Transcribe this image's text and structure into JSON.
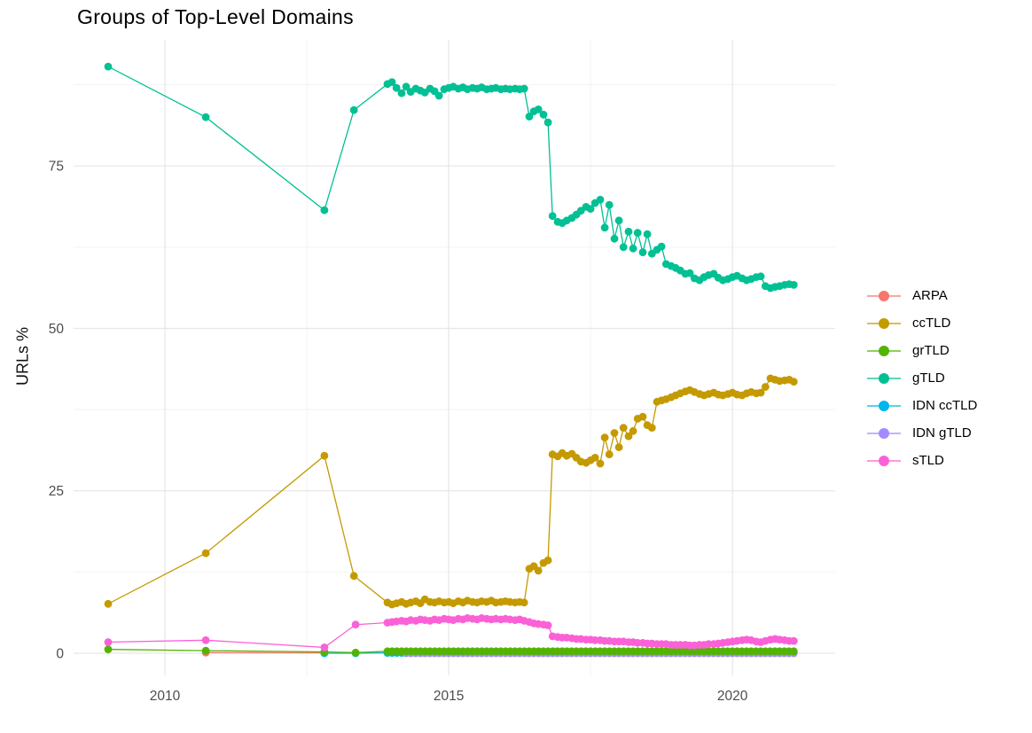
{
  "chart_data": {
    "type": "scatter-line",
    "title": "Groups of Top-Level Domains",
    "xlabel": "",
    "ylabel": "URLs %",
    "x_ticks": [
      {
        "value": 2010,
        "label": "2010"
      },
      {
        "value": 2015,
        "label": "2015"
      },
      {
        "value": 2020,
        "label": "2020"
      }
    ],
    "y_ticks": [
      {
        "value": 0,
        "label": "0"
      },
      {
        "value": 25,
        "label": "25"
      },
      {
        "value": 50,
        "label": "50"
      },
      {
        "value": 75,
        "label": "75"
      }
    ],
    "x_minor": [
      2012.5,
      2017.5
    ],
    "y_minor": [
      12.5,
      37.5,
      62.5,
      87.5
    ],
    "xlim": [
      2008.39,
      2021.81
    ],
    "ylim": [
      -3.41,
      94.4
    ],
    "grid": {
      "major_color": "#E6E6E6",
      "minor_color": "#F2F2F2",
      "background": "#FFFFFF"
    },
    "tick_label_color": "#4D4D4D",
    "legend_position": "right",
    "series": [
      {
        "name": "ARPA",
        "color": "#F8766D",
        "points": [
          [
            2010.72,
            0.1
          ],
          [
            2012.81,
            0.05
          ]
        ]
      },
      {
        "name": "ccTLD",
        "color": "#C49A00",
        "points": [
          [
            2009.0,
            7.6
          ],
          [
            2010.72,
            15.4
          ],
          [
            2012.81,
            30.4
          ],
          [
            2013.33,
            11.9
          ],
          [
            2013.92,
            7.8
          ],
          [
            2014.0,
            7.5
          ],
          [
            2014.08,
            7.7
          ],
          [
            2014.17,
            7.9
          ],
          [
            2014.25,
            7.6
          ],
          [
            2014.33,
            7.8
          ],
          [
            2014.42,
            8.0
          ],
          [
            2014.5,
            7.7
          ],
          [
            2014.58,
            8.3
          ],
          [
            2014.67,
            7.9
          ],
          [
            2014.75,
            7.8
          ],
          [
            2014.83,
            8.0
          ],
          [
            2014.92,
            7.8
          ],
          [
            2015.0,
            7.9
          ],
          [
            2015.08,
            7.7
          ],
          [
            2015.17,
            8.0
          ],
          [
            2015.25,
            7.8
          ],
          [
            2015.33,
            8.1
          ],
          [
            2015.42,
            7.9
          ],
          [
            2015.5,
            7.8
          ],
          [
            2015.58,
            8.0
          ],
          [
            2015.67,
            7.9
          ],
          [
            2015.75,
            8.1
          ],
          [
            2015.83,
            7.8
          ],
          [
            2015.92,
            7.9
          ],
          [
            2016.0,
            8.0
          ],
          [
            2016.08,
            7.9
          ],
          [
            2016.17,
            7.8
          ],
          [
            2016.25,
            7.9
          ],
          [
            2016.33,
            7.8
          ],
          [
            2016.42,
            13.0
          ],
          [
            2016.5,
            13.4
          ],
          [
            2016.58,
            12.7
          ],
          [
            2016.67,
            13.9
          ],
          [
            2016.75,
            14.3
          ],
          [
            2016.83,
            30.6
          ],
          [
            2016.92,
            30.3
          ],
          [
            2017.0,
            30.8
          ],
          [
            2017.08,
            30.4
          ],
          [
            2017.17,
            30.7
          ],
          [
            2017.25,
            30.1
          ],
          [
            2017.33,
            29.5
          ],
          [
            2017.42,
            29.3
          ],
          [
            2017.5,
            29.7
          ],
          [
            2017.58,
            30.1
          ],
          [
            2017.67,
            29.2
          ],
          [
            2017.75,
            33.2
          ],
          [
            2017.83,
            30.6
          ],
          [
            2017.92,
            33.9
          ],
          [
            2018.0,
            31.7
          ],
          [
            2018.08,
            34.7
          ],
          [
            2018.17,
            33.4
          ],
          [
            2018.25,
            34.2
          ],
          [
            2018.33,
            36.1
          ],
          [
            2018.42,
            36.4
          ],
          [
            2018.5,
            35.1
          ],
          [
            2018.58,
            34.7
          ],
          [
            2018.67,
            38.7
          ],
          [
            2018.75,
            38.9
          ],
          [
            2018.83,
            39.1
          ],
          [
            2018.92,
            39.4
          ],
          [
            2019.0,
            39.7
          ],
          [
            2019.08,
            40.0
          ],
          [
            2019.17,
            40.3
          ],
          [
            2019.25,
            40.5
          ],
          [
            2019.33,
            40.2
          ],
          [
            2019.42,
            39.9
          ],
          [
            2019.5,
            39.7
          ],
          [
            2019.58,
            39.9
          ],
          [
            2019.67,
            40.1
          ],
          [
            2019.75,
            39.8
          ],
          [
            2019.83,
            39.7
          ],
          [
            2019.92,
            39.9
          ],
          [
            2020.0,
            40.1
          ],
          [
            2020.08,
            39.8
          ],
          [
            2020.17,
            39.7
          ],
          [
            2020.25,
            40.0
          ],
          [
            2020.33,
            40.2
          ],
          [
            2020.42,
            40.0
          ],
          [
            2020.5,
            40.1
          ],
          [
            2020.58,
            41.0
          ],
          [
            2020.67,
            42.3
          ],
          [
            2020.75,
            42.1
          ],
          [
            2020.83,
            41.9
          ],
          [
            2020.92,
            42.0
          ],
          [
            2021.0,
            42.1
          ],
          [
            2021.08,
            41.8
          ]
        ]
      },
      {
        "name": "grTLD",
        "color": "#53B400",
        "points": [
          [
            2009.0,
            0.6
          ],
          [
            2010.72,
            0.4
          ],
          [
            2012.81,
            0.2
          ],
          [
            2013.36,
            0.1
          ]
        ],
        "points_flat": {
          "from": 2013.92,
          "to": 2021.08,
          "n": 87,
          "value": 0.3
        }
      },
      {
        "name": "gTLD",
        "color": "#00C094",
        "points": [
          [
            2009.0,
            90.3
          ],
          [
            2010.72,
            82.5
          ],
          [
            2012.81,
            68.2
          ],
          [
            2013.33,
            83.6
          ],
          [
            2013.92,
            87.6
          ],
          [
            2014.0,
            87.9
          ],
          [
            2014.08,
            87.0
          ],
          [
            2014.17,
            86.2
          ],
          [
            2014.25,
            87.2
          ],
          [
            2014.33,
            86.4
          ],
          [
            2014.42,
            86.9
          ],
          [
            2014.5,
            86.6
          ],
          [
            2014.58,
            86.3
          ],
          [
            2014.67,
            86.9
          ],
          [
            2014.75,
            86.5
          ],
          [
            2014.83,
            85.8
          ],
          [
            2014.92,
            86.8
          ],
          [
            2015.0,
            87.0
          ],
          [
            2015.08,
            87.2
          ],
          [
            2015.17,
            86.9
          ],
          [
            2015.25,
            87.1
          ],
          [
            2015.33,
            86.8
          ],
          [
            2015.42,
            87.0
          ],
          [
            2015.5,
            86.9
          ],
          [
            2015.58,
            87.1
          ],
          [
            2015.67,
            86.8
          ],
          [
            2015.75,
            86.9
          ],
          [
            2015.83,
            87.0
          ],
          [
            2015.92,
            86.8
          ],
          [
            2016.0,
            86.9
          ],
          [
            2016.08,
            86.8
          ],
          [
            2016.17,
            86.9
          ],
          [
            2016.25,
            86.8
          ],
          [
            2016.33,
            86.9
          ],
          [
            2016.42,
            82.6
          ],
          [
            2016.5,
            83.4
          ],
          [
            2016.58,
            83.7
          ],
          [
            2016.67,
            82.9
          ],
          [
            2016.75,
            81.7
          ],
          [
            2016.83,
            67.3
          ],
          [
            2016.92,
            66.4
          ],
          [
            2017.0,
            66.2
          ],
          [
            2017.08,
            66.6
          ],
          [
            2017.17,
            67.0
          ],
          [
            2017.25,
            67.5
          ],
          [
            2017.33,
            68.1
          ],
          [
            2017.42,
            68.7
          ],
          [
            2017.5,
            68.4
          ],
          [
            2017.58,
            69.3
          ],
          [
            2017.67,
            69.8
          ],
          [
            2017.75,
            65.5
          ],
          [
            2017.83,
            69.0
          ],
          [
            2017.92,
            63.8
          ],
          [
            2018.0,
            66.6
          ],
          [
            2018.08,
            62.5
          ],
          [
            2018.17,
            64.9
          ],
          [
            2018.25,
            62.3
          ],
          [
            2018.33,
            64.7
          ],
          [
            2018.42,
            61.7
          ],
          [
            2018.5,
            64.5
          ],
          [
            2018.58,
            61.5
          ],
          [
            2018.67,
            62.1
          ],
          [
            2018.75,
            62.6
          ],
          [
            2018.83,
            59.9
          ],
          [
            2018.92,
            59.6
          ],
          [
            2019.0,
            59.3
          ],
          [
            2019.08,
            58.9
          ],
          [
            2019.17,
            58.4
          ],
          [
            2019.25,
            58.5
          ],
          [
            2019.33,
            57.7
          ],
          [
            2019.42,
            57.4
          ],
          [
            2019.5,
            57.9
          ],
          [
            2019.58,
            58.2
          ],
          [
            2019.67,
            58.4
          ],
          [
            2019.75,
            57.8
          ],
          [
            2019.83,
            57.4
          ],
          [
            2019.92,
            57.6
          ],
          [
            2020.0,
            57.9
          ],
          [
            2020.08,
            58.1
          ],
          [
            2020.17,
            57.7
          ],
          [
            2020.25,
            57.4
          ],
          [
            2020.33,
            57.6
          ],
          [
            2020.42,
            57.9
          ],
          [
            2020.5,
            58.0
          ],
          [
            2020.58,
            56.5
          ],
          [
            2020.67,
            56.2
          ],
          [
            2020.75,
            56.4
          ],
          [
            2020.83,
            56.5
          ],
          [
            2020.92,
            56.7
          ],
          [
            2021.0,
            56.8
          ],
          [
            2021.08,
            56.7
          ]
        ]
      },
      {
        "name": "IDN ccTLD",
        "color": "#00B6EB",
        "points": [
          [
            2012.81,
            0.0
          ],
          [
            2013.36,
            0.0
          ]
        ],
        "points_flat": {
          "from": 2013.92,
          "to": 2021.08,
          "n": 87,
          "value": 0.05
        }
      },
      {
        "name": "IDN gTLD",
        "color": "#A58AFF",
        "points": [],
        "points_flat": {
          "from": 2014.25,
          "to": 2021.08,
          "n": 83,
          "value": 0.0
        }
      },
      {
        "name": "sTLD",
        "color": "#FB61D7",
        "points": [
          [
            2009.0,
            1.7
          ],
          [
            2010.72,
            2.0
          ],
          [
            2012.81,
            0.9
          ],
          [
            2013.36,
            4.4
          ],
          [
            2013.92,
            4.7
          ],
          [
            2014.0,
            4.8
          ],
          [
            2014.08,
            4.9
          ],
          [
            2014.17,
            5.0
          ],
          [
            2014.25,
            4.9
          ],
          [
            2014.33,
            5.1
          ],
          [
            2014.42,
            5.0
          ],
          [
            2014.5,
            5.2
          ],
          [
            2014.58,
            5.1
          ],
          [
            2014.67,
            5.0
          ],
          [
            2014.75,
            5.2
          ],
          [
            2014.83,
            5.1
          ],
          [
            2014.92,
            5.3
          ],
          [
            2015.0,
            5.2
          ],
          [
            2015.08,
            5.1
          ],
          [
            2015.17,
            5.3
          ],
          [
            2015.25,
            5.2
          ],
          [
            2015.33,
            5.4
          ],
          [
            2015.42,
            5.3
          ],
          [
            2015.5,
            5.2
          ],
          [
            2015.58,
            5.4
          ],
          [
            2015.67,
            5.3
          ],
          [
            2015.75,
            5.2
          ],
          [
            2015.83,
            5.3
          ],
          [
            2015.92,
            5.2
          ],
          [
            2016.0,
            5.3
          ],
          [
            2016.08,
            5.2
          ],
          [
            2016.17,
            5.1
          ],
          [
            2016.25,
            5.2
          ],
          [
            2016.33,
            5.0
          ],
          [
            2016.42,
            4.8
          ],
          [
            2016.5,
            4.6
          ],
          [
            2016.58,
            4.5
          ],
          [
            2016.67,
            4.4
          ],
          [
            2016.75,
            4.3
          ],
          [
            2016.83,
            2.6
          ],
          [
            2016.92,
            2.5
          ],
          [
            2017.0,
            2.4
          ],
          [
            2017.08,
            2.4
          ],
          [
            2017.17,
            2.3
          ],
          [
            2017.25,
            2.2
          ],
          [
            2017.33,
            2.2
          ],
          [
            2017.42,
            2.1
          ],
          [
            2017.5,
            2.1
          ],
          [
            2017.58,
            2.0
          ],
          [
            2017.67,
            2.0
          ],
          [
            2017.75,
            1.9
          ],
          [
            2017.83,
            1.9
          ],
          [
            2017.92,
            1.8
          ],
          [
            2018.0,
            1.8
          ],
          [
            2018.08,
            1.8
          ],
          [
            2018.17,
            1.7
          ],
          [
            2018.25,
            1.7
          ],
          [
            2018.33,
            1.6
          ],
          [
            2018.42,
            1.6
          ],
          [
            2018.5,
            1.5
          ],
          [
            2018.58,
            1.5
          ],
          [
            2018.67,
            1.4
          ],
          [
            2018.75,
            1.4
          ],
          [
            2018.83,
            1.4
          ],
          [
            2018.92,
            1.3
          ],
          [
            2019.0,
            1.3
          ],
          [
            2019.08,
            1.3
          ],
          [
            2019.17,
            1.3
          ],
          [
            2019.25,
            1.2
          ],
          [
            2019.33,
            1.2
          ],
          [
            2019.42,
            1.3
          ],
          [
            2019.5,
            1.3
          ],
          [
            2019.58,
            1.4
          ],
          [
            2019.67,
            1.4
          ],
          [
            2019.75,
            1.5
          ],
          [
            2019.83,
            1.6
          ],
          [
            2019.92,
            1.7
          ],
          [
            2020.0,
            1.8
          ],
          [
            2020.08,
            1.9
          ],
          [
            2020.17,
            2.0
          ],
          [
            2020.25,
            2.1
          ],
          [
            2020.33,
            2.0
          ],
          [
            2020.42,
            1.8
          ],
          [
            2020.5,
            1.7
          ],
          [
            2020.58,
            1.9
          ],
          [
            2020.67,
            2.1
          ],
          [
            2020.75,
            2.2
          ],
          [
            2020.83,
            2.1
          ],
          [
            2020.92,
            2.0
          ],
          [
            2021.0,
            1.9
          ],
          [
            2021.08,
            1.9
          ]
        ]
      }
    ],
    "legend": [
      "ARPA",
      "ccTLD",
      "grTLD",
      "gTLD",
      "IDN ccTLD",
      "IDN gTLD",
      "sTLD"
    ]
  }
}
